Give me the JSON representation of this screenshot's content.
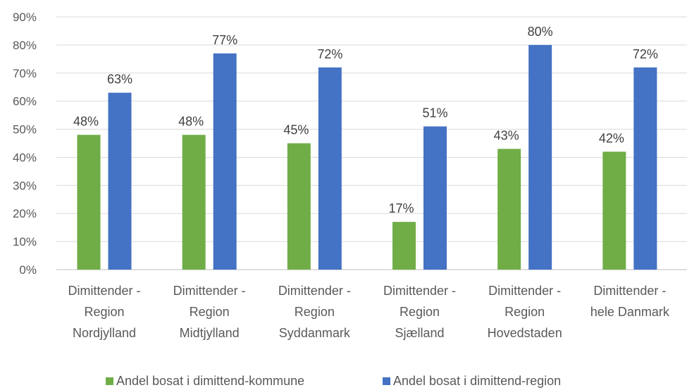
{
  "chart_data": {
    "type": "bar",
    "categories": [
      [
        "Dimittender -",
        "Region",
        "Nordjylland"
      ],
      [
        "Dimittender -",
        "Region",
        "Midtjylland"
      ],
      [
        "Dimittender -",
        "Region",
        "Syddanmark"
      ],
      [
        "Dimittender -",
        "Region",
        "Sjælland"
      ],
      [
        "Dimittender -",
        "Region",
        "Hovedstaden"
      ],
      [
        "Dimittender -",
        "hele Danmark"
      ]
    ],
    "series": [
      {
        "name": "Andel bosat i dimittend-kommune",
        "color": "#70AD47",
        "values": [
          48,
          48,
          45,
          17,
          43,
          42
        ],
        "labels": [
          "48%",
          "48%",
          "45%",
          "17%",
          "43%",
          "42%"
        ]
      },
      {
        "name": "Andel bosat i dimittend-region",
        "color": "#4472C4",
        "values": [
          63,
          77,
          72,
          51,
          80,
          72
        ],
        "labels": [
          "63%",
          "77%",
          "72%",
          "51%",
          "80%",
          "72%"
        ]
      }
    ],
    "yticks": [
      "0%",
      "10%",
      "20%",
      "30%",
      "40%",
      "50%",
      "60%",
      "70%",
      "80%",
      "90%"
    ],
    "ylim": [
      0,
      90
    ],
    "grid": true,
    "legend_position": "bottom"
  }
}
